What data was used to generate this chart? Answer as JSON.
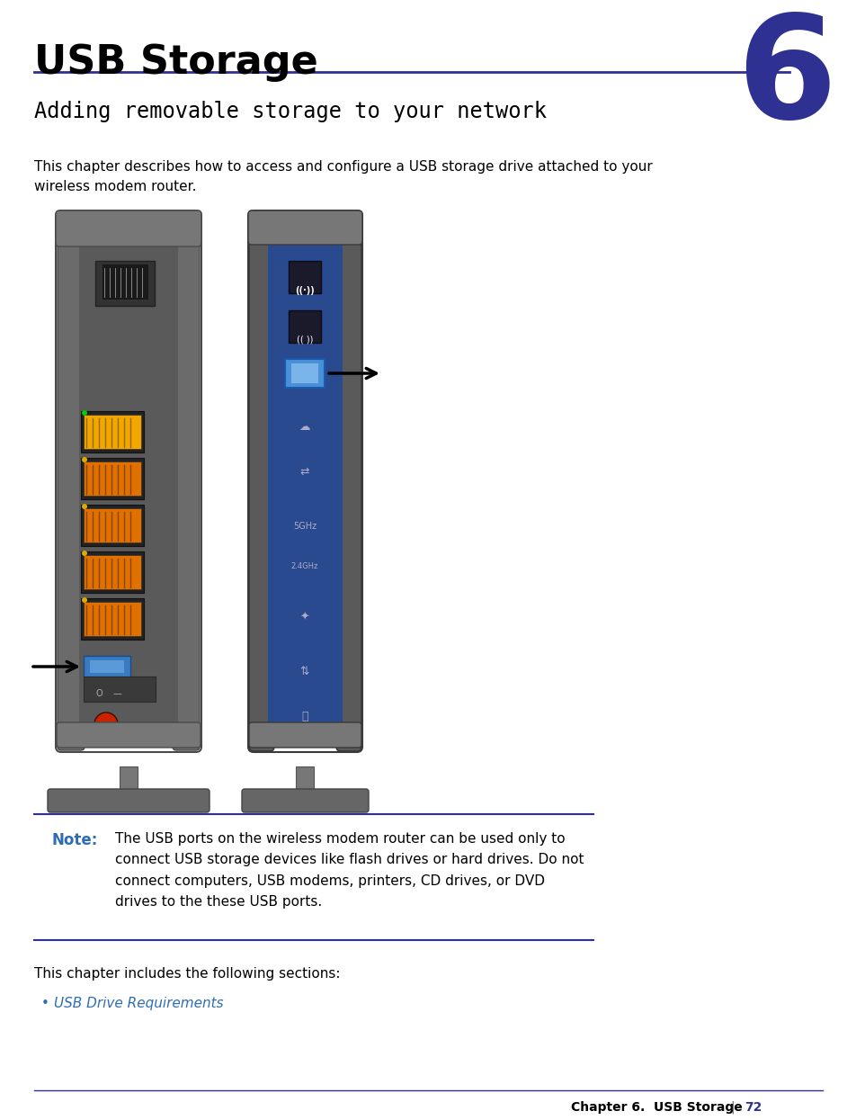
{
  "bg_color": "#ffffff",
  "title": "USB Storage",
  "chapter_num": "6",
  "chapter_num_color": "#2e3192",
  "title_color": "#000000",
  "title_fontsize": 32,
  "subtitle": "Adding removable storage to your network",
  "subtitle_color": "#000000",
  "subtitle_fontsize": 17,
  "line_color": "#2e3192",
  "intro_text": "This chapter describes how to access and configure a USB storage drive attached to your\nwireless modem router.",
  "intro_fontsize": 11,
  "intro_color": "#000000",
  "note_label": "Note:",
  "note_label_color": "#2e6db4",
  "note_fontsize": 11,
  "note_color": "#000000",
  "note_body": "The USB ports on the wireless modem router can be used only to\nconnect USB storage devices like flash drives or hard drives. Do not\nconnect computers, USB modems, printers, CD drives, or DVD\ndrives to the these USB ports.",
  "sections_intro": "This chapter includes the following sections:",
  "sections_intro_fontsize": 11,
  "bullet_link": "USB Drive Requirements",
  "bullet_link_color": "#2e6db4",
  "bullet_fontsize": 11,
  "footer_text": "Chapter 6.  USB Storage",
  "footer_page": "72",
  "footer_color": "#000000",
  "footer_fontsize": 10,
  "router_left_body_color": "#6b6b6b",
  "router_left_body_edge": "#4a4a4a",
  "router_left_panel_color": "#5a5a5a",
  "router_right_body_color": "#5a5a5a",
  "router_right_panel_color": "#2a4a8f",
  "router_right_panel_edge": "#1a3a7f",
  "port_yellow": "#f0a800",
  "port_orange": "#e07800",
  "port_green_dot": "#00aa00",
  "port_usb_blue": "#3a7abf",
  "router_base_color": "#555555",
  "router_cap_color": "#777777"
}
